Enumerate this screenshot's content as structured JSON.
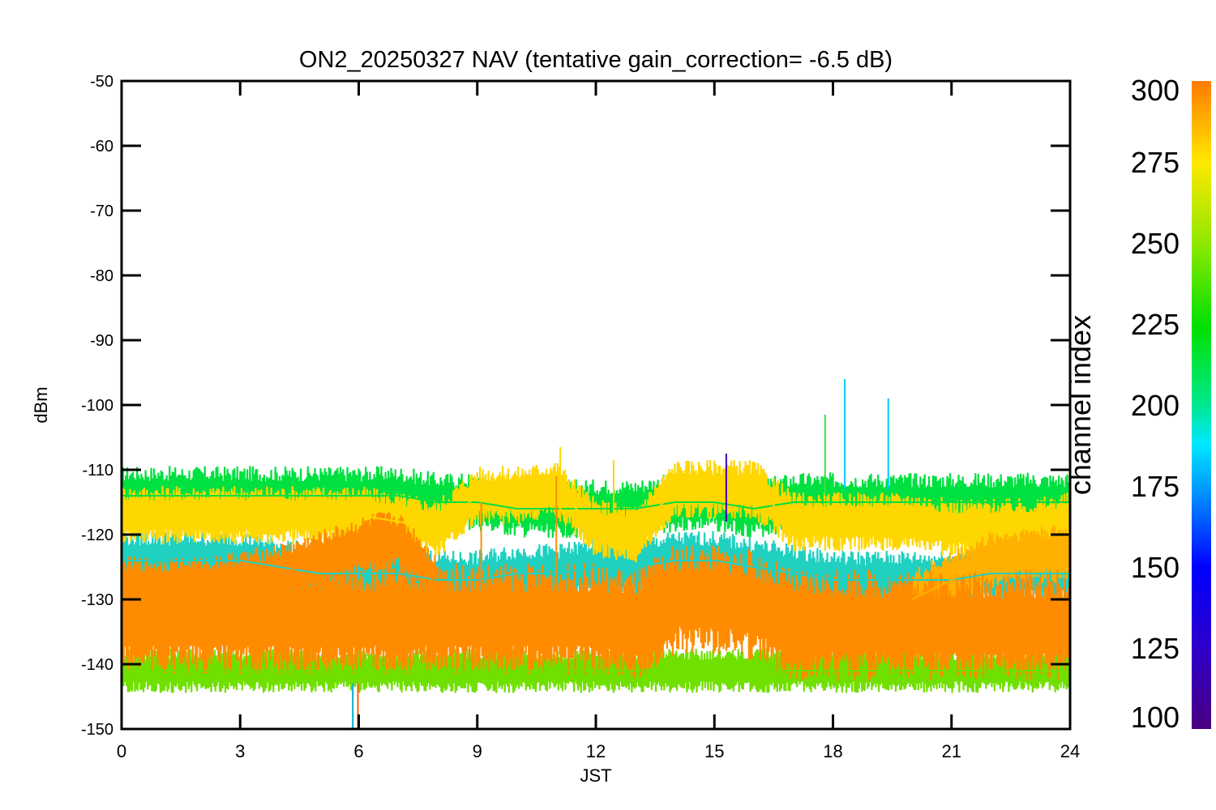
{
  "chart_data": {
    "type": "line",
    "title": "ON2_20250327 NAV (tentative gain_correction= -6.5 dB)",
    "xlabel": "JST",
    "ylabel": "dBm",
    "xlim": [
      0,
      24
    ],
    "ylim": [
      -150,
      -50
    ],
    "xticks": [
      0,
      3,
      6,
      9,
      12,
      15,
      18,
      21,
      24
    ],
    "xtick_labels": [
      "0",
      "3",
      "6",
      "9",
      "12",
      "15",
      "18",
      "21",
      "24"
    ],
    "yticks": [
      -50,
      -60,
      -70,
      -80,
      -90,
      -100,
      -110,
      -120,
      -130,
      -140,
      -150
    ],
    "ytick_labels": [
      "-50",
      "-60",
      "-70",
      "-80",
      "-90",
      "-100",
      "-110",
      "-120",
      "-130",
      "-140",
      "-150"
    ],
    "grid": false,
    "colorbar": {
      "label": "channel index",
      "range": [
        100,
        300
      ],
      "ticks": [
        300,
        275,
        250,
        225,
        200,
        175,
        150,
        125,
        100
      ],
      "tick_labels": [
        "300",
        "275",
        "250",
        "225",
        "200",
        "175",
        "150",
        "125",
        "100"
      ],
      "colormap": "rainbow"
    },
    "series": [
      {
        "color_index": 200,
        "color": "#00e040",
        "x": [
          0,
          1,
          2,
          3,
          4,
          5,
          6,
          7,
          8,
          9,
          10,
          11,
          12,
          13,
          14,
          15,
          16,
          17,
          18,
          19,
          20,
          21,
          22,
          23,
          24
        ],
        "y": [
          -114,
          -114,
          -114,
          -114,
          -114,
          -114,
          -114,
          -114,
          -115,
          -115,
          -116,
          -116,
          -116,
          -116,
          -115,
          -115,
          -116,
          -115,
          -115,
          -115,
          -115,
          -115,
          -115,
          -115,
          -115
        ]
      },
      {
        "color_index": 270,
        "color": "#ffd700",
        "x": [
          0,
          1,
          2,
          3,
          4,
          5,
          6,
          7,
          8,
          9,
          10,
          11,
          12,
          13,
          14,
          15,
          16,
          17,
          18,
          19,
          20,
          21,
          22,
          23,
          24
        ],
        "y": [
          -117,
          -117,
          -117,
          -117,
          -117,
          -117,
          -117,
          -118,
          -119,
          -114,
          -114,
          -113,
          -119,
          -120,
          -113,
          -113,
          -113,
          -118,
          -118,
          -118,
          -118,
          -119,
          -119,
          -119,
          -118
        ]
      },
      {
        "color_index": 170,
        "color": "#20d0c0",
        "x": [
          0,
          1,
          2,
          3,
          4,
          5,
          6,
          7,
          8,
          9,
          10,
          11,
          12,
          13,
          14,
          15,
          16,
          17,
          18,
          19,
          20,
          21,
          22,
          23,
          24
        ],
        "y": [
          -124,
          -124,
          -124,
          -124,
          -125,
          -126,
          -126,
          -126,
          -127,
          -127,
          -126,
          -126,
          -125,
          -125,
          -124,
          -124,
          -125,
          -126,
          -127,
          -127,
          -127,
          -127,
          -126,
          -126,
          -126
        ]
      },
      {
        "color_index": 285,
        "color": "#ff8c00",
        "x": [
          0,
          1,
          2,
          3,
          4,
          5,
          6,
          7,
          8,
          9,
          10,
          11,
          12,
          13,
          14,
          15,
          16,
          17,
          18,
          19,
          20,
          21,
          22,
          23,
          24
        ],
        "y": [
          -133,
          -133,
          -133,
          -133,
          -133,
          -133,
          -133,
          -133,
          -133,
          -133,
          -133,
          -133,
          -133,
          -134,
          -130,
          -130,
          -131,
          -134,
          -134,
          -134,
          -134,
          -134,
          -134,
          -134,
          -134
        ]
      },
      {
        "color_index": 285,
        "color": "#ff8c00",
        "x": [
          0,
          2,
          4,
          5,
          6,
          6.5,
          7,
          7.5,
          8
        ],
        "y": [
          -128,
          -128,
          -126,
          -124,
          -122,
          -121,
          -121,
          -124,
          -128
        ]
      },
      {
        "color_index": 275,
        "color": "#ffb000",
        "x": [
          20,
          21,
          22,
          23,
          24
        ],
        "y": [
          -130,
          -127,
          -124,
          -123,
          -123
        ]
      },
      {
        "color_index": 230,
        "color": "#70e000",
        "x": [
          0,
          1,
          2,
          3,
          4,
          5,
          6,
          7,
          8,
          9,
          10,
          11,
          12,
          13,
          14,
          15,
          16,
          17,
          18,
          19,
          20,
          21,
          22,
          23,
          24
        ],
        "y": [
          -141,
          -141,
          -141,
          -141,
          -141,
          -141,
          -141,
          -141,
          -141,
          -141,
          -141,
          -141,
          -141,
          -141,
          -141,
          -141,
          -141,
          -141,
          -141,
          -141,
          -141,
          -141,
          -141,
          -141,
          -141
        ]
      }
    ],
    "spikes": [
      {
        "x": 18.3,
        "y_top": -96,
        "y_base": -113,
        "color": "#00c8ff"
      },
      {
        "x": 19.4,
        "y_top": -99,
        "y_base": -113,
        "color": "#00c8ff"
      },
      {
        "x": 17.8,
        "y_top": -101.5,
        "y_base": -114,
        "color": "#40e040"
      },
      {
        "x": 11.1,
        "y_top": -106.5,
        "y_base": -118,
        "color": "#ffd700"
      },
      {
        "x": 9.1,
        "y_top": -115,
        "y_base": -130,
        "color": "#ff8c00"
      },
      {
        "x": 11.0,
        "y_top": -111,
        "y_base": -130,
        "color": "#ff8c00"
      },
      {
        "x": 15.3,
        "y_top": -107.5,
        "y_base": -118,
        "color": "#4000c0"
      },
      {
        "x": 12.45,
        "y_top": -108.5,
        "y_base": -118,
        "color": "#ffd700"
      },
      {
        "x": 5.85,
        "y_top": -150,
        "y_base": -143,
        "color": "#00b0d0"
      },
      {
        "x": 5.98,
        "y_top": -150,
        "y_base": -143,
        "color": "#ff6000"
      }
    ]
  }
}
